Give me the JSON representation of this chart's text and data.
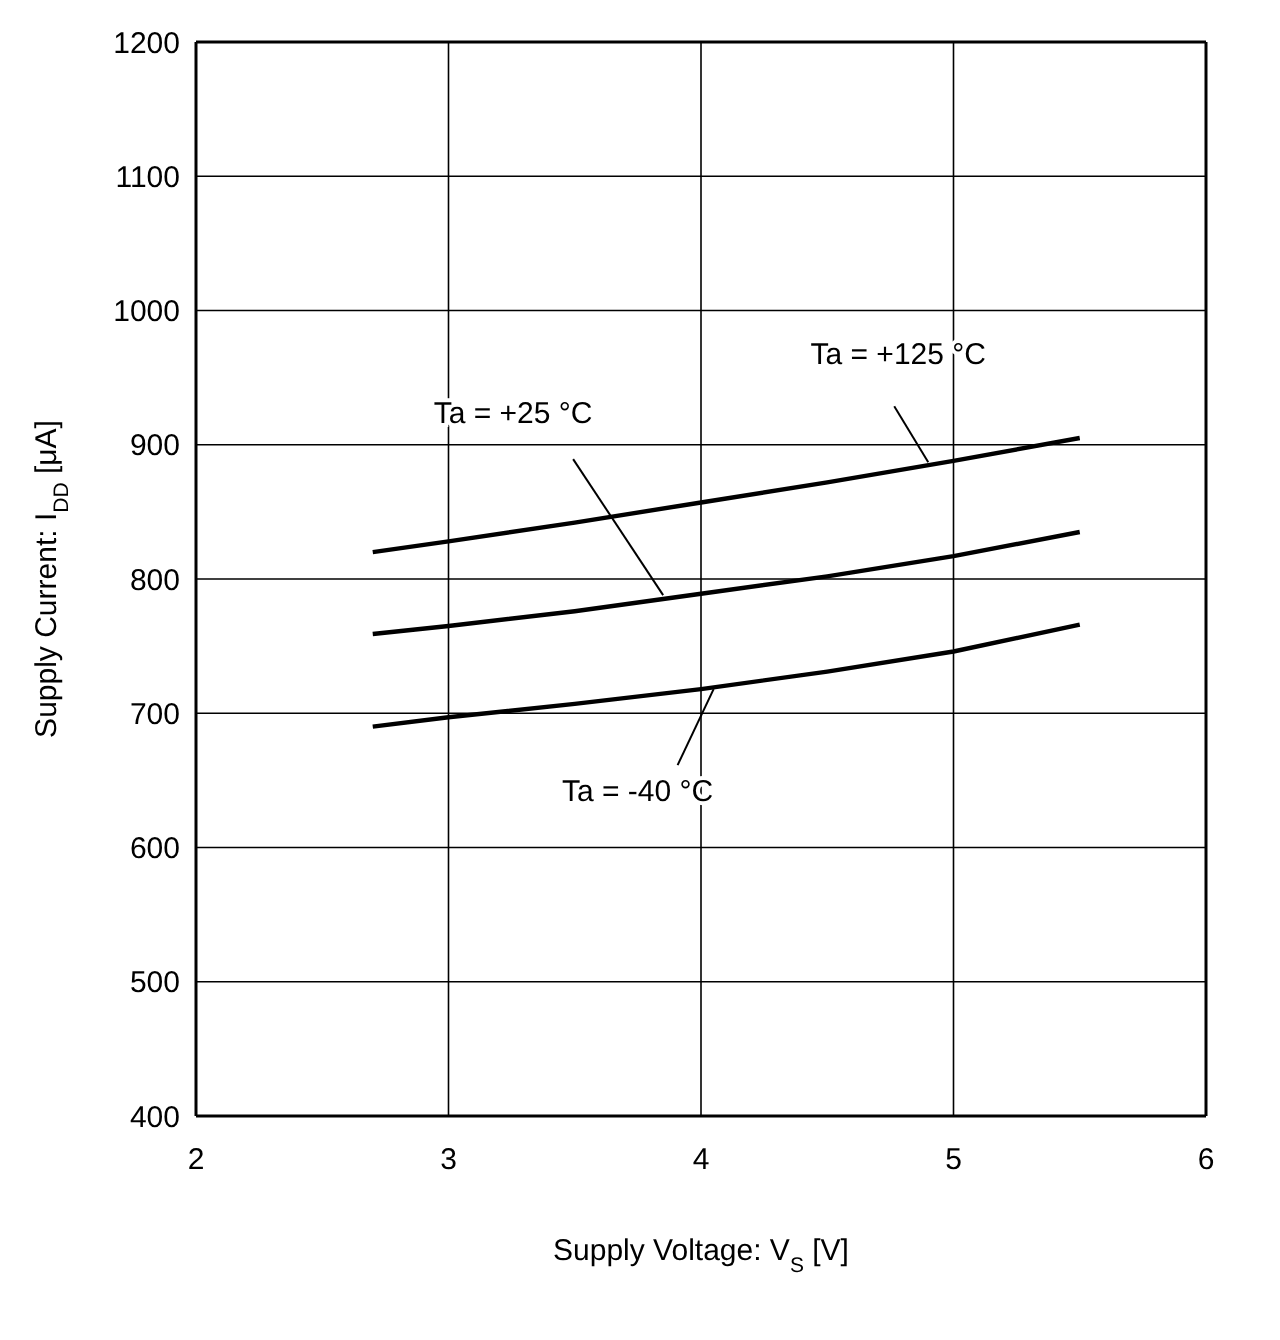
{
  "chart_data": {
    "type": "line",
    "xlabel": "Supply Voltage:  V$_{S}$ [V]",
    "ylabel": "Supply Current:  I$_{DD}$ [μA]",
    "xlim": [
      2,
      6
    ],
    "xticks": [
      2,
      3,
      4,
      5,
      6
    ],
    "ylim": [
      400,
      1200
    ],
    "yticks": [
      400,
      500,
      600,
      700,
      800,
      900,
      1000,
      1100,
      1200
    ],
    "grid": true,
    "marker": "none",
    "line_style": "solid",
    "series": [
      {
        "color": "#000000",
        "x": [
          2.7,
          3,
          3.5,
          4,
          4.5,
          5,
          5.5
        ],
        "values": [
          820,
          828,
          842,
          857,
          872,
          888,
          905
        ]
      },
      {
        "color": "#000000",
        "x": [
          2.7,
          3,
          3.5,
          4,
          4.5,
          5,
          5.5
        ],
        "values": [
          759,
          765,
          776,
          789,
          802,
          817,
          835
        ]
      },
      {
        "color": "#000000",
        "x": [
          2.7,
          3,
          3.5,
          4,
          4.5,
          5,
          5.5
        ],
        "values": [
          690,
          697,
          707,
          718,
          731,
          746,
          766
        ]
      }
    ],
    "annotations": [
      {
        "text": "Ta = +125 °C",
        "x": 4.9,
        "y": 887
      },
      {
        "text": "Ta = +25 °C",
        "x": 3.85,
        "y": 788
      },
      {
        "text": "Ta = -40 °C",
        "x": 4.05,
        "y": 718
      }
    ]
  }
}
